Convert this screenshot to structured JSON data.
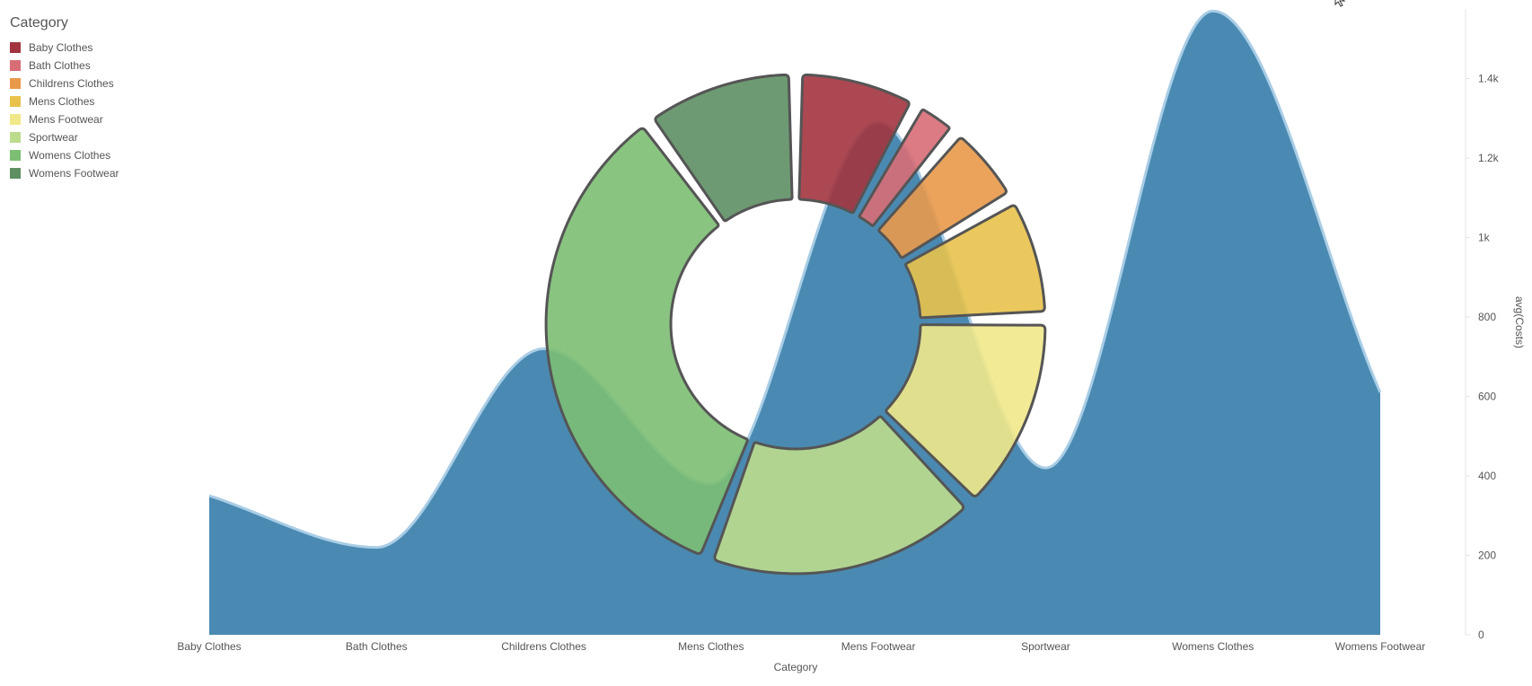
{
  "chart_data": [
    {
      "type": "area",
      "categories": [
        "Baby Clothes",
        "Bath Clothes",
        "Childrens Clothes",
        "Mens Clothes",
        "Mens Footwear",
        "Sportwear",
        "Womens Clothes",
        "Womens Footwear"
      ],
      "values": [
        350,
        220,
        720,
        380,
        1290,
        420,
        1570,
        610
      ],
      "xlabel": "Category",
      "ylabel": "avg(Costs)",
      "ylim": [
        0,
        1575
      ],
      "y_ticks": [
        0,
        200,
        400,
        600,
        800,
        1000,
        1200,
        1400
      ],
      "y_tick_labels": [
        "0",
        "200",
        "400",
        "600",
        "800",
        "1k",
        "1.2k",
        "1.4k"
      ],
      "y_axis_side": "right",
      "curve": "smooth",
      "color": "#4a8ab2",
      "line_color": "#a9cde6"
    },
    {
      "type": "pie",
      "variant": "donut",
      "legend_title": "Category",
      "legend_position": "top-left",
      "categories": [
        "Baby Clothes",
        "Bath Clothes",
        "Childrens Clothes",
        "Mens Clothes",
        "Mens Footwear",
        "Sportwear",
        "Womens Clothes",
        "Womens Footwear"
      ],
      "values": [
        8,
        3,
        5.5,
        8,
        13,
        18,
        34,
        10
      ],
      "colors": [
        "#a2343f",
        "#d86d76",
        "#e9994a",
        "#e8c24b",
        "#f1e889",
        "#bcdc8d",
        "#7cbe73",
        "#5d8f63"
      ],
      "explode": [
        0.1,
        0.1,
        0.1,
        0.1,
        0.1,
        0.1,
        0.1,
        0.1
      ]
    }
  ]
}
